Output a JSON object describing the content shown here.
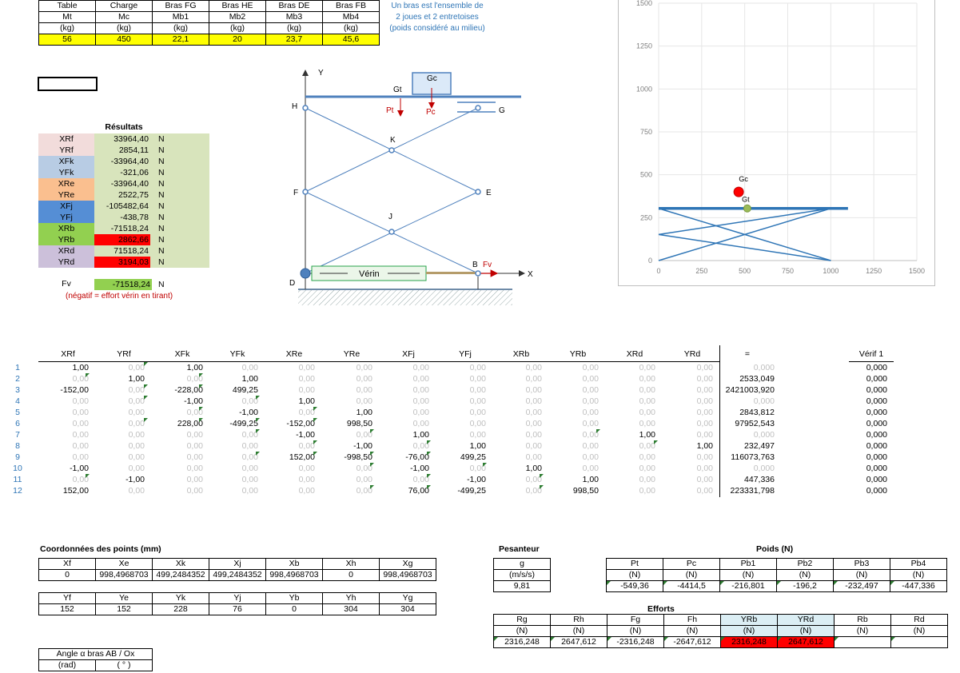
{
  "top_table": {
    "headers": [
      "Table",
      "Charge",
      "Bras FG",
      "Bras HE",
      "Bras DE",
      "Bras FB"
    ],
    "symbols": [
      "Mt",
      "Mc",
      "Mb1",
      "Mb2",
      "Mb3",
      "Mb4"
    ],
    "units": [
      "(kg)",
      "(kg)",
      "(kg)",
      "(kg)",
      "(kg)",
      "(kg)"
    ],
    "values": [
      "56",
      "450",
      "22,1",
      "20",
      "23,7",
      "45,6"
    ]
  },
  "note": {
    "line1": "Un bras est l'ensemble de",
    "line2": "2 joues et 2 entretoises",
    "line3": "(poids considéré au milieu)"
  },
  "results": {
    "title": "Résultats",
    "unit": "N",
    "rows": [
      {
        "label": "XRf",
        "value": "33964,40",
        "bg": "#f2dcdb",
        "vbg": "#d8e4bc"
      },
      {
        "label": "YRf",
        "value": "2854,11",
        "bg": "#f2dcdb",
        "vbg": "#d8e4bc"
      },
      {
        "label": "XFk",
        "value": "-33964,40",
        "bg": "#b8cce4",
        "vbg": "#d8e4bc"
      },
      {
        "label": "YFk",
        "value": "-321,06",
        "bg": "#b8cce4",
        "vbg": "#d8e4bc"
      },
      {
        "label": "XRe",
        "value": "-33964,40",
        "bg": "#fabf8f",
        "vbg": "#d8e4bc"
      },
      {
        "label": "YRe",
        "value": "2522,75",
        "bg": "#fabf8f",
        "vbg": "#d8e4bc"
      },
      {
        "label": "XFj",
        "value": "-105482,64",
        "bg": "#558ed5",
        "vbg": "#d8e4bc"
      },
      {
        "label": "YFj",
        "value": "-438,78",
        "bg": "#558ed5",
        "vbg": "#d8e4bc"
      },
      {
        "label": "XRb",
        "value": "-71518,24",
        "bg": "#92d050",
        "vbg": "#d8e4bc"
      },
      {
        "label": "YRb",
        "value": "2862,66",
        "bg": "#92d050",
        "vbg": "#ff0000"
      },
      {
        "label": "XRd",
        "value": "71518,24",
        "bg": "#ccc0da",
        "vbg": "#d8e4bc"
      },
      {
        "label": "YRd",
        "value": "3194,03",
        "bg": "#ccc0da",
        "vbg": "#ff0000"
      }
    ],
    "fv_label": "Fv",
    "fv_value": "-71518,24",
    "fv_note": "(négatif = effort vérin en tirant)"
  },
  "diagram": {
    "labels": {
      "y": "Y",
      "x": "X",
      "gc": "Gc",
      "gt": "Gt",
      "pt": "Pt",
      "pc": "Pc",
      "h": "H",
      "g": "G",
      "k": "K",
      "f": "F",
      "e": "E",
      "j": "J",
      "b": "B",
      "fv": "Fv",
      "d": "D",
      "verin": "Vérin"
    }
  },
  "chart_data": {
    "type": "scatter",
    "xlim": [
      0,
      1500
    ],
    "ylim": [
      0,
      1500
    ],
    "xticks": [
      "0",
      "250",
      "500",
      "750",
      "1000",
      "1250",
      "1500"
    ],
    "yticks": [
      "0",
      "250",
      "500",
      "750",
      "1000",
      "1250",
      "1500"
    ],
    "points": [
      {
        "name": "Gc",
        "x": 465,
        "y": 400,
        "color": "#ff0000"
      },
      {
        "name": "Gt",
        "x": 515,
        "y": 304,
        "color": "#9bbb59"
      }
    ],
    "table_line": {
      "x": [
        0,
        1100
      ],
      "y": [
        304,
        304
      ]
    },
    "scissor": [
      {
        "x": [
          0,
          1000
        ],
        "y": [
          0,
          304
        ]
      },
      {
        "x": [
          0,
          1000
        ],
        "y": [
          304,
          0
        ]
      },
      {
        "x": [
          0,
          1000
        ],
        "y": [
          152,
          0
        ]
      },
      {
        "x": [
          0,
          1000
        ],
        "y": [
          152,
          304
        ]
      }
    ]
  },
  "matrix": {
    "headers": [
      "XRf",
      "YRf",
      "XFk",
      "YFk",
      "XRe",
      "YRe",
      "XFj",
      "YFj",
      "XRb",
      "YRb",
      "XRd",
      "YRd",
      "=",
      "Vérif 1"
    ],
    "rows": [
      {
        "n": "1",
        "c": [
          "1,00",
          "0,00",
          "1,00",
          "0,00",
          "0,00",
          "0,00",
          "0,00",
          "0,00",
          "0,00",
          "0,00",
          "0,00",
          "0,00"
        ],
        "eq": "0,000",
        "v": "0,000"
      },
      {
        "n": "2",
        "c": [
          "0,00",
          "1,00",
          "0,00",
          "1,00",
          "0,00",
          "0,00",
          "0,00",
          "0,00",
          "0,00",
          "0,00",
          "0,00",
          "0,00"
        ],
        "eq": "2533,049",
        "v": "0,000"
      },
      {
        "n": "3",
        "c": [
          "-152,00",
          "0,00",
          "-228,00",
          "499,25",
          "0,00",
          "0,00",
          "0,00",
          "0,00",
          "0,00",
          "0,00",
          "0,00",
          "0,00"
        ],
        "eq": "2421003,920",
        "v": "0,000"
      },
      {
        "n": "4",
        "c": [
          "0,00",
          "0,00",
          "-1,00",
          "0,00",
          "1,00",
          "0,00",
          "0,00",
          "0,00",
          "0,00",
          "0,00",
          "0,00",
          "0,00"
        ],
        "eq": "0,000",
        "v": "0,000"
      },
      {
        "n": "5",
        "c": [
          "0,00",
          "0,00",
          "0,00",
          "-1,00",
          "0,00",
          "1,00",
          "0,00",
          "0,00",
          "0,00",
          "0,00",
          "0,00",
          "0,00"
        ],
        "eq": "2843,812",
        "v": "0,000"
      },
      {
        "n": "6",
        "c": [
          "0,00",
          "0,00",
          "228,00",
          "-499,25",
          "-152,00",
          "998,50",
          "0,00",
          "0,00",
          "0,00",
          "0,00",
          "0,00",
          "0,00"
        ],
        "eq": "97952,543",
        "v": "0,000"
      },
      {
        "n": "7",
        "c": [
          "0,00",
          "0,00",
          "0,00",
          "0,00",
          "-1,00",
          "0,00",
          "1,00",
          "0,00",
          "0,00",
          "0,00",
          "1,00",
          "0,00"
        ],
        "eq": "0,000",
        "v": "0,000"
      },
      {
        "n": "8",
        "c": [
          "0,00",
          "0,00",
          "0,00",
          "0,00",
          "0,00",
          "-1,00",
          "0,00",
          "1,00",
          "0,00",
          "0,00",
          "0,00",
          "1,00"
        ],
        "eq": "232,497",
        "v": "0,000"
      },
      {
        "n": "9",
        "c": [
          "0,00",
          "0,00",
          "0,00",
          "0,00",
          "152,00",
          "-998,50",
          "-76,00",
          "499,25",
          "0,00",
          "0,00",
          "0,00",
          "0,00"
        ],
        "eq": "116073,763",
        "v": "0,000"
      },
      {
        "n": "10",
        "c": [
          "-1,00",
          "0,00",
          "0,00",
          "0,00",
          "0,00",
          "0,00",
          "-1,00",
          "0,00",
          "1,00",
          "0,00",
          "0,00",
          "0,00"
        ],
        "eq": "0,000",
        "v": "0,000"
      },
      {
        "n": "11",
        "c": [
          "0,00",
          "-1,00",
          "0,00",
          "0,00",
          "0,00",
          "0,00",
          "0,00",
          "-1,00",
          "0,00",
          "1,00",
          "0,00",
          "0,00"
        ],
        "eq": "447,336",
        "v": "0,000"
      },
      {
        "n": "12",
        "c": [
          "152,00",
          "0,00",
          "0,00",
          "0,00",
          "0,00",
          "0,00",
          "76,00",
          "-499,25",
          "0,00",
          "998,50",
          "0,00",
          "0,00"
        ],
        "eq": "223331,798",
        "v": "0,000"
      }
    ]
  },
  "coords": {
    "title": "Coordonnées des points (mm)",
    "x_headers": [
      "Xf",
      "Xe",
      "Xk",
      "Xj",
      "Xb",
      "Xh",
      "Xg"
    ],
    "x_values": [
      "0",
      "998,4968703",
      "499,2484352",
      "499,2484352",
      "998,4968703",
      "0",
      "998,4968703"
    ],
    "y_headers": [
      "Yf",
      "Ye",
      "Yk",
      "Yj",
      "Yb",
      "Yh",
      "Yg"
    ],
    "y_values": [
      "152",
      "152",
      "228",
      "76",
      "0",
      "304",
      "304"
    ]
  },
  "angle": {
    "title": "Angle α bras AB / Ox",
    "h1": "(rad)",
    "h2": "( ° )"
  },
  "pesanteur": {
    "title": "Pesanteur",
    "symbol": "g",
    "unit": "(m/s/s)",
    "value": "9,81"
  },
  "poids": {
    "title": "Poids (N)",
    "headers": [
      "Pt",
      "Pc",
      "Pb1",
      "Pb2",
      "Pb3",
      "Pb4"
    ],
    "units": [
      "(N)",
      "(N)",
      "(N)",
      "(N)",
      "(N)",
      "(N)"
    ],
    "values": [
      "-549,36",
      "-4414,5",
      "-216,801",
      "-196,2",
      "-232,497",
      "-447,336"
    ]
  },
  "efforts": {
    "title": "Efforts",
    "headers": [
      "Rg",
      "Rh",
      "Fg",
      "Fh",
      "YRb",
      "YRd",
      "Rb",
      "Rd"
    ],
    "units": [
      "(N)",
      "(N)",
      "(N)",
      "(N)",
      "(N)",
      "(N)",
      "(N)",
      "(N)"
    ],
    "values": [
      "2316,248",
      "2647,612",
      "-2316,248",
      "-2647,612",
      "2316,248",
      "2647,612",
      "",
      ""
    ]
  }
}
